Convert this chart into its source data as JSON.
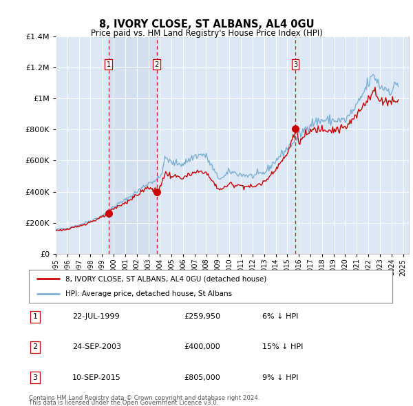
{
  "title": "8, IVORY CLOSE, ST ALBANS, AL4 0GU",
  "subtitle": "Price paid vs. HM Land Registry's House Price Index (HPI)",
  "legend_line1": "8, IVORY CLOSE, ST ALBANS, AL4 0GU (detached house)",
  "legend_line2": "HPI: Average price, detached house, St Albans",
  "footer1": "Contains HM Land Registry data © Crown copyright and database right 2024.",
  "footer2": "This data is licensed under the Open Government Licence v3.0.",
  "transactions": [
    {
      "num": 1,
      "date": "22-JUL-1999",
      "price": 259950,
      "pct": "6%",
      "dir": "↓",
      "year": 1999.55
    },
    {
      "num": 2,
      "date": "24-SEP-2003",
      "price": 400000,
      "pct": "15%",
      "dir": "↓",
      "year": 2003.73
    },
    {
      "num": 3,
      "date": "10-SEP-2015",
      "price": 805000,
      "pct": "9%",
      "dir": "↓",
      "year": 2015.69
    }
  ],
  "hpi_color": "#7bafd4",
  "price_color": "#cc0000",
  "vline_color": "#cc0000",
  "plot_bg": "#dce8f5",
  "shade_bg": "#c8d8ea",
  "ylim": [
    0,
    1400000
  ],
  "yticks": [
    0,
    200000,
    400000,
    600000,
    800000,
    1000000,
    1200000,
    1400000
  ],
  "xlim_start": 1995.0,
  "xlim_end": 2025.5
}
